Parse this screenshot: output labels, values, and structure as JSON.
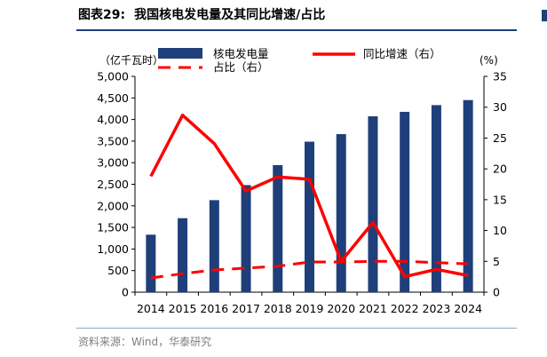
{
  "figure": {
    "number_label": "图表29:",
    "title": "我国核电发电量及其同比增速/占比",
    "source": "资料来源：Wind，华泰研究"
  },
  "chart_data": {
    "type": "bar",
    "categories": [
      "2014",
      "2015",
      "2016",
      "2017",
      "2018",
      "2019",
      "2020",
      "2021",
      "2022",
      "2023",
      "2024"
    ],
    "series": [
      {
        "name": "核电发电量",
        "type": "bar",
        "axis": "left",
        "color": "#1f3f7a",
        "values": [
          1332,
          1714,
          2132,
          2481,
          2944,
          3487,
          3662,
          4075,
          4178,
          4334,
          4451
        ]
      },
      {
        "name": "同比增速（右）",
        "type": "line",
        "axis": "right",
        "color": "#ff0000",
        "values": [
          18.8,
          28.7,
          24.1,
          16.4,
          18.7,
          18.3,
          5.0,
          11.3,
          2.5,
          3.7,
          2.7
        ]
      },
      {
        "name": "占比（右）",
        "type": "line",
        "style": "dashed",
        "axis": "right",
        "color": "#ff0000",
        "values": [
          2.3,
          3.0,
          3.6,
          3.9,
          4.2,
          4.9,
          4.9,
          5.0,
          5.0,
          4.8,
          4.6
        ]
      }
    ],
    "ylabel_left": "（亿千瓦时）",
    "ylabel_right": "(%)",
    "ylim_left": [
      0,
      5000
    ],
    "ylim_right": [
      0,
      35
    ],
    "yticks_left": [
      "0",
      "500",
      "1,000",
      "1,500",
      "2,000",
      "2,500",
      "3,000",
      "3,500",
      "4,000",
      "4,500",
      "5,000"
    ],
    "yticks_right": [
      "0",
      "5",
      "10",
      "15",
      "20",
      "25",
      "30",
      "35"
    ],
    "grid": false,
    "legend_position": "top"
  }
}
